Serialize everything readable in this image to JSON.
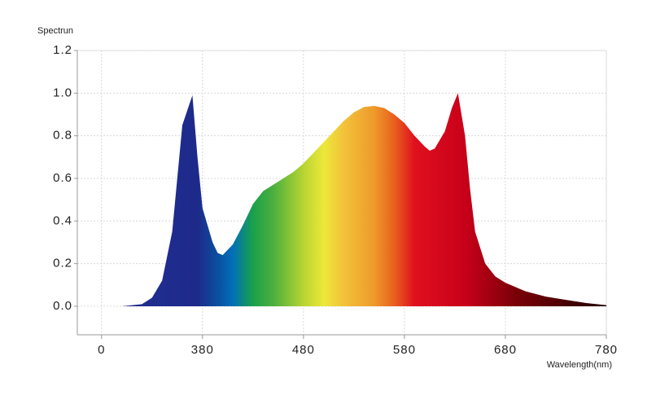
{
  "chart_data": {
    "type": "area",
    "y_axis_title": "Spectrun",
    "x_axis_title": "Wavelength(nm)",
    "x": [
      280,
      300,
      320,
      330,
      340,
      350,
      360,
      370,
      375,
      380,
      385,
      390,
      395,
      400,
      410,
      420,
      430,
      440,
      450,
      460,
      470,
      480,
      490,
      500,
      510,
      520,
      530,
      540,
      550,
      560,
      570,
      580,
      590,
      600,
      605,
      610,
      620,
      627,
      633,
      640,
      645,
      650,
      660,
      670,
      680,
      700,
      720,
      740,
      760,
      780
    ],
    "values": [
      0.0,
      0.0,
      0.01,
      0.04,
      0.12,
      0.35,
      0.85,
      0.99,
      0.7,
      0.46,
      0.38,
      0.3,
      0.25,
      0.24,
      0.29,
      0.38,
      0.48,
      0.54,
      0.57,
      0.6,
      0.63,
      0.67,
      0.72,
      0.77,
      0.82,
      0.87,
      0.91,
      0.935,
      0.94,
      0.93,
      0.9,
      0.86,
      0.8,
      0.75,
      0.73,
      0.74,
      0.82,
      0.93,
      1.0,
      0.8,
      0.55,
      0.35,
      0.2,
      0.14,
      0.11,
      0.07,
      0.045,
      0.03,
      0.015,
      0.005
    ],
    "color_stops": [
      {
        "x": 340,
        "color": "#1f2d8f"
      },
      {
        "x": 375,
        "color": "#1e2a8a"
      },
      {
        "x": 395,
        "color": "#0a4fa0"
      },
      {
        "x": 410,
        "color": "#0070b8"
      },
      {
        "x": 430,
        "color": "#1aa04a"
      },
      {
        "x": 450,
        "color": "#4caf3e"
      },
      {
        "x": 480,
        "color": "#b8d432"
      },
      {
        "x": 500,
        "color": "#ece83a"
      },
      {
        "x": 520,
        "color": "#f2c23a"
      },
      {
        "x": 550,
        "color": "#ee9a2a"
      },
      {
        "x": 570,
        "color": "#e8601e"
      },
      {
        "x": 590,
        "color": "#e0101e"
      },
      {
        "x": 640,
        "color": "#c8001a"
      },
      {
        "x": 690,
        "color": "#7a0008"
      },
      {
        "x": 770,
        "color": "#2a0000"
      }
    ],
    "xlim": [
      256,
      780
    ],
    "ylim": [
      -0.134,
      1.2
    ],
    "xticks": [
      {
        "value": 280,
        "label": "0"
      },
      380,
      480,
      580,
      680,
      780
    ],
    "yticks": [
      {
        "value": 1.2,
        "label": "1.2"
      },
      {
        "value": 1.0,
        "label": "1.0"
      },
      0.8,
      0.6,
      0.4,
      0.2,
      {
        "value": 0.0,
        "label": "0.0"
      }
    ],
    "grid": true
  }
}
